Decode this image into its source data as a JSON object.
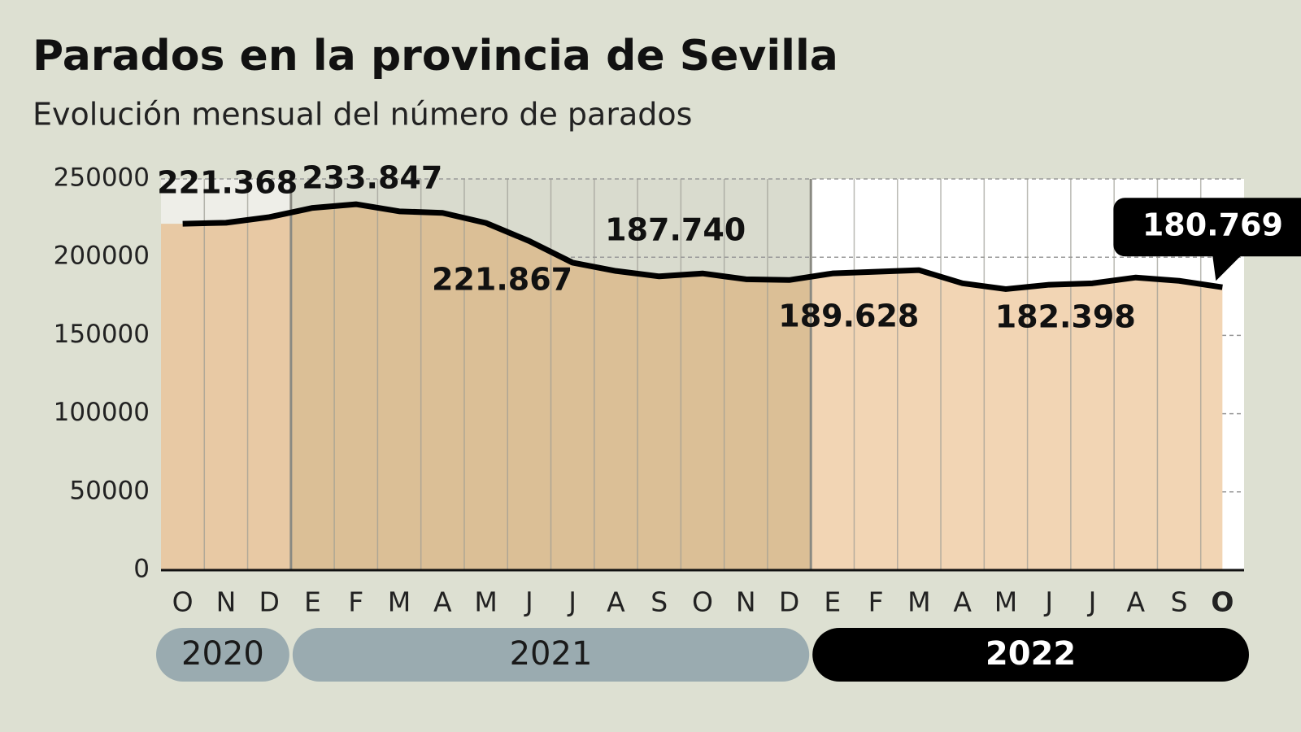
{
  "chart_data": {
    "type": "area",
    "title": "Parados en la provincia de Sevilla",
    "subtitle": "Evolución mensual del número de parados",
    "categories": [
      "O",
      "N",
      "D",
      "E",
      "F",
      "M",
      "A",
      "M",
      "J",
      "J",
      "A",
      "S",
      "O",
      "N",
      "D",
      "E",
      "F",
      "M",
      "A",
      "M",
      "J",
      "J",
      "A",
      "S",
      "O"
    ],
    "values": [
      221368,
      222000,
      225600,
      231500,
      233847,
      229300,
      228300,
      221867,
      210300,
      196500,
      191200,
      187740,
      189600,
      185900,
      185400,
      189628,
      190700,
      191700,
      183300,
      179600,
      182398,
      183300,
      187000,
      184900,
      180769
    ],
    "value_labels": [
      "221.368",
      null,
      null,
      null,
      "233.847",
      null,
      null,
      "221.867",
      null,
      null,
      null,
      "187.740",
      null,
      null,
      null,
      "189.628",
      null,
      null,
      null,
      null,
      "182.398",
      null,
      null,
      null,
      "180.769"
    ],
    "color": "#000000",
    "ylim": [
      0,
      250000
    ],
    "yticks": [
      0,
      50000,
      100000,
      150000,
      200000,
      250000
    ],
    "grid": true,
    "periods": [
      {
        "label": "2020",
        "months": 3,
        "background": "#eeeee8",
        "fill": "#e8c9a4",
        "pill": "#9aabb0",
        "text_color": "#1a1a1a"
      },
      {
        "label": "2021",
        "months": 12,
        "background": "#d9dbce",
        "fill": "#dbbf96",
        "pill": "#9aabb0",
        "text_color": "#1a1a1a"
      },
      {
        "label": "2022",
        "months": 10,
        "background": "#ffffff",
        "fill": "#f2d5b4",
        "pill": "#000000",
        "text_color": "#ffffff"
      }
    ]
  }
}
